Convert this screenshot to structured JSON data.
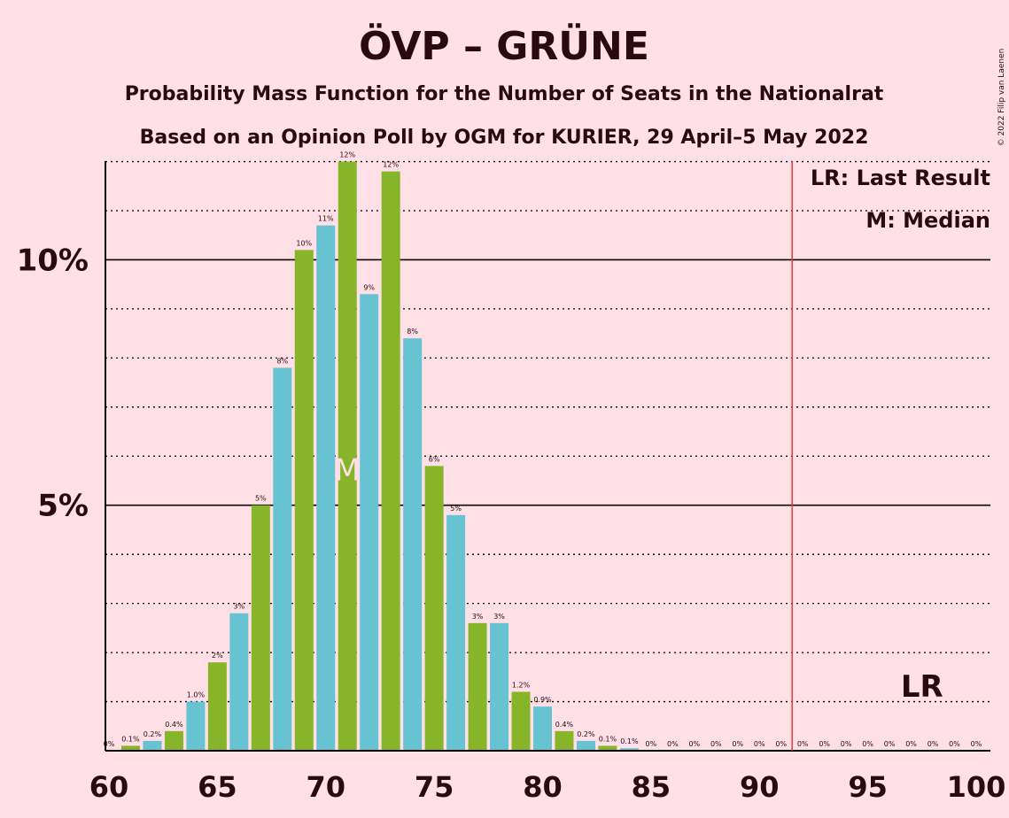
{
  "title": "ÖVP – GRÜNE",
  "subtitle1": "Probability Mass Function for the Number of Seats in the Nationalrat",
  "subtitle2": "Based on an Opinion Poll by OGM for KURIER, 29 April–5 May 2022",
  "copyright": "© 2022 Filip van Laenen",
  "legend": {
    "last_result": "LR: Last Result",
    "median": "M: Median"
  },
  "median_marker": "M",
  "last_result_marker": "LR",
  "colors": {
    "background": "#FFE0E6",
    "green": "#86B52A",
    "blue": "#67C3D2",
    "last_result_line": "#E23B3B",
    "text": "#2a0a12"
  },
  "chart_data": {
    "type": "bar",
    "x": [
      60,
      61,
      62,
      63,
      64,
      65,
      66,
      67,
      68,
      69,
      70,
      71,
      72,
      73,
      74,
      75,
      76,
      77,
      78,
      79,
      80,
      81,
      82,
      83,
      84,
      85,
      86,
      87,
      88,
      89,
      90,
      91,
      92,
      93,
      94,
      95,
      96,
      97,
      98,
      99,
      100
    ],
    "values": [
      0,
      0.1,
      0.2,
      0.4,
      1.0,
      1.8,
      2.8,
      5.0,
      7.8,
      10.2,
      10.7,
      12.0,
      9.3,
      11.8,
      8.4,
      5.8,
      4.8,
      2.6,
      2.6,
      1.2,
      0.9,
      0.4,
      0.2,
      0.1,
      0.05,
      0,
      0,
      0,
      0,
      0,
      0,
      0,
      0,
      0,
      0,
      0,
      0,
      0,
      0,
      0,
      0
    ],
    "labels": [
      "0%",
      "0.1%",
      "0.2%",
      "0.4%",
      "1.0%",
      "2%",
      "3%",
      "5%",
      "8%",
      "10%",
      "11%",
      "12%",
      "9%",
      "12%",
      "8%",
      "6%",
      "5%",
      "3%",
      "3%",
      "1.2%",
      "0.9%",
      "0.4%",
      "0.2%",
      "0.1%",
      "0.1%",
      "0%",
      "0%",
      "0%",
      "0%",
      "0%",
      "0%",
      "0%",
      "0%",
      "0%",
      "0%",
      "0%",
      "0%",
      "0%",
      "0%",
      "0%",
      "0%"
    ],
    "xticks": [
      "60",
      "65",
      "70",
      "75",
      "80",
      "85",
      "90",
      "95",
      "100"
    ],
    "yticks": [
      "5%",
      "10%"
    ],
    "ylim": [
      0,
      13
    ],
    "median_seat": 71,
    "last_result_seat": 92
  }
}
